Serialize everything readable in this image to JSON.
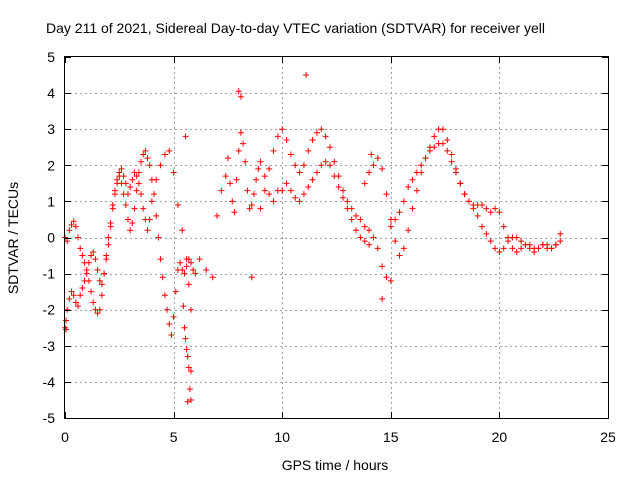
{
  "chart_data": {
    "type": "scatter",
    "title": "Day 211 of 2021, Sidereal Day-to-day VTEC variation (SDTVAR) for receiver yell",
    "xlabel": "GPS time / hours",
    "ylabel": "SDTVAR / TECUs",
    "xlim": [
      0,
      25
    ],
    "ylim": [
      -5,
      5
    ],
    "xticks": [
      0,
      5,
      10,
      15,
      20,
      25
    ],
    "yticks": [
      -5,
      -4,
      -3,
      -2,
      -1,
      0,
      1,
      2,
      3,
      4,
      5
    ],
    "grid": true,
    "marker": "+",
    "color": "#ff0000",
    "series": [
      {
        "name": "SDTVAR",
        "x": [
          0.0,
          0.1,
          0.2,
          0.3,
          0.4,
          0.5,
          0.6,
          0.7,
          0.8,
          0.9,
          1.0,
          1.1,
          1.2,
          1.3,
          1.4,
          1.5,
          1.6,
          1.7,
          1.8,
          1.9,
          2.0,
          2.1,
          2.2,
          2.3,
          2.4,
          2.5,
          2.6,
          2.7,
          2.8,
          2.9,
          3.0,
          3.1,
          3.2,
          3.3,
          3.4,
          3.5,
          3.6,
          3.7,
          3.8,
          3.9,
          4.0,
          4.1,
          4.2,
          4.3,
          4.4,
          4.5,
          4.6,
          4.7,
          4.8,
          4.9,
          5.0,
          5.1,
          5.2,
          5.3,
          5.4,
          5.5,
          5.6,
          5.7,
          5.8,
          5.9,
          6.0,
          0.0,
          0.05,
          0.1,
          0.2,
          0.3,
          0.4,
          0.5,
          0.6,
          0.7,
          0.8,
          0.9,
          1.0,
          1.1,
          1.2,
          1.3,
          1.4,
          1.5,
          1.6,
          1.7,
          1.8,
          1.9,
          2.0,
          2.1,
          2.2,
          2.3,
          2.4,
          2.5,
          2.6,
          2.7,
          2.8,
          2.9,
          3.0,
          3.1,
          3.2,
          3.3,
          3.4,
          3.5,
          3.6,
          3.7,
          3.8,
          3.9,
          4.0,
          4.2,
          4.4,
          4.6,
          4.8,
          5.0,
          5.2,
          5.4,
          5.6,
          5.7,
          5.8,
          5.45,
          5.5,
          5.55,
          5.6,
          5.65,
          5.7,
          5.75,
          5.8,
          6.2,
          6.5,
          6.8,
          7.0,
          7.2,
          7.4,
          7.5,
          7.6,
          7.7,
          7.8,
          7.9,
          8.0,
          8.1,
          8.2,
          8.3,
          8.4,
          8.5,
          8.6,
          8.7,
          8.8,
          8.9,
          9.0,
          9.2,
          9.4,
          9.6,
          9.8,
          9.0,
          9.2,
          9.4,
          9.6,
          9.8,
          10.0,
          10.2,
          10.4,
          10.6,
          10.8,
          11.0,
          11.2,
          11.4,
          11.6,
          11.8,
          12.0,
          12.2,
          12.4,
          12.6,
          12.8,
          13.0,
          13.2,
          13.4,
          13.6,
          13.8,
          14.0,
          10.0,
          10.2,
          10.4,
          10.6,
          10.8,
          11.0,
          11.2,
          11.4,
          11.6,
          11.8,
          12.0,
          12.2,
          12.4,
          12.6,
          12.8,
          13.0,
          13.2,
          13.4,
          13.6,
          13.8,
          14.0,
          14.2,
          14.4,
          14.6,
          14.8,
          15.0,
          13.8,
          14.0,
          14.2,
          14.4,
          14.6,
          14.8,
          15.0,
          15.2,
          15.4,
          15.6,
          15.8,
          16.0,
          16.2,
          16.4,
          16.6,
          16.8,
          17.0,
          17.2,
          17.4,
          17.6,
          17.8,
          18.0,
          18.2,
          18.4,
          18.6,
          18.8,
          19.0,
          19.2,
          19.4,
          19.6,
          19.8,
          20.0,
          20.2,
          20.4,
          20.6,
          20.8,
          21.0,
          21.2,
          21.4,
          21.6,
          21.8,
          22.0,
          22.2,
          22.4,
          22.6,
          22.8,
          15.0,
          15.2,
          15.4,
          15.6,
          15.8,
          16.0,
          16.2,
          16.4,
          16.6,
          16.8,
          17.0,
          17.2,
          17.4,
          17.6,
          17.8,
          18.0,
          18.2,
          18.4,
          18.6,
          18.8,
          19.0,
          19.2,
          19.4,
          19.6,
          19.8,
          20.0,
          20.2,
          20.4,
          20.6,
          20.8,
          21.0,
          21.2,
          21.4,
          21.6,
          21.8,
          22.0,
          22.2,
          22.4,
          22.6,
          22.8,
          0.05,
          5.55,
          5.65,
          5.8,
          8.0,
          8.1,
          8.6,
          11.1,
          14.6,
          14.1
        ],
        "y": [
          0.0,
          -0.1,
          0.2,
          0.35,
          0.45,
          0.3,
          0.0,
          -0.3,
          -0.5,
          -0.7,
          -0.9,
          -1.2,
          -1.5,
          -1.8,
          -2.0,
          -2.1,
          -2.0,
          -1.6,
          -1.0,
          -0.5,
          0.0,
          0.4,
          0.9,
          1.3,
          1.6,
          1.7,
          1.5,
          1.2,
          0.9,
          0.5,
          0.2,
          0.4,
          0.8,
          1.3,
          1.8,
          2.1,
          2.3,
          2.4,
          2.2,
          2.0,
          1.6,
          1.2,
          0.6,
          0.0,
          -0.6,
          -1.1,
          -1.6,
          -2.0,
          -2.4,
          -2.7,
          -2.2,
          -1.5,
          -0.9,
          -0.7,
          -0.9,
          -1.0,
          -0.8,
          -0.6,
          -0.7,
          -0.9,
          -1.0,
          -2.5,
          -2.3,
          -2.0,
          -1.7,
          -1.5,
          -1.6,
          -1.8,
          -1.9,
          -1.6,
          -1.4,
          -1.2,
          -1.0,
          -0.7,
          -0.5,
          -0.4,
          -0.6,
          -0.9,
          -1.2,
          -1.3,
          -1.0,
          -0.6,
          -0.2,
          0.3,
          0.8,
          1.2,
          1.5,
          1.8,
          1.9,
          1.7,
          1.5,
          1.2,
          1.4,
          1.6,
          1.8,
          1.7,
          1.5,
          1.2,
          0.8,
          0.5,
          0.2,
          0.5,
          1.0,
          1.6,
          2.0,
          2.3,
          2.4,
          1.8,
          0.9,
          0.2,
          -0.6,
          -1.3,
          -2.0,
          -1.9,
          -2.5,
          -2.8,
          -3.1,
          -3.3,
          -3.6,
          -4.2,
          -4.5,
          -0.6,
          -0.9,
          -1.1,
          0.6,
          1.3,
          1.7,
          2.2,
          1.5,
          1.0,
          0.7,
          1.6,
          2.4,
          2.9,
          2.6,
          2.1,
          1.3,
          0.8,
          0.9,
          1.2,
          1.6,
          1.9,
          2.1,
          1.7,
          1.2,
          1.0,
          1.3,
          0.8,
          1.3,
          1.9,
          2.4,
          2.8,
          3.0,
          2.7,
          2.3,
          2.0,
          1.8,
          2.0,
          2.4,
          2.7,
          2.9,
          3.0,
          2.8,
          2.5,
          2.1,
          1.7,
          1.3,
          1.0,
          0.8,
          0.6,
          0.5,
          0.3,
          0.2,
          1.3,
          1.5,
          1.3,
          1.1,
          1.0,
          1.2,
          1.4,
          1.6,
          1.8,
          2.0,
          2.1,
          2.0,
          1.7,
          1.4,
          1.1,
          0.8,
          0.5,
          0.2,
          0.0,
          -0.1,
          -0.2,
          0.0,
          -0.3,
          -0.8,
          -1.1,
          -1.2,
          1.5,
          1.8,
          2.0,
          2.2,
          1.9,
          1.2,
          0.5,
          -0.1,
          -0.5,
          -0.3,
          0.2,
          0.8,
          1.3,
          1.8,
          2.2,
          2.5,
          2.8,
          3.0,
          3.0,
          2.7,
          2.3,
          1.9,
          1.5,
          1.2,
          1.0,
          0.9,
          0.9,
          0.9,
          0.8,
          0.7,
          0.8,
          0.7,
          0.3,
          0.0,
          -0.3,
          -0.4,
          -0.3,
          -0.2,
          -0.2,
          -0.3,
          -0.3,
          -0.2,
          -0.3,
          -0.3,
          -0.2,
          -0.1,
          0.3,
          0.5,
          0.7,
          1.0,
          1.4,
          1.6,
          1.8,
          2.0,
          2.2,
          2.4,
          2.5,
          2.6,
          2.6,
          2.4,
          2.1,
          1.8,
          1.5,
          1.2,
          1.0,
          0.8,
          0.6,
          0.3,
          0.1,
          -0.1,
          -0.3,
          -0.4,
          -0.3,
          -0.1,
          0.0,
          0.0,
          -0.1,
          -0.2,
          -0.3,
          -0.4,
          -0.3,
          -0.2,
          -0.2,
          -0.3,
          -0.2,
          0.1,
          -2.55,
          2.8,
          -4.55,
          -3.7,
          4.05,
          3.9,
          -1.1,
          4.5,
          -1.7,
          2.3
        ]
      }
    ]
  }
}
